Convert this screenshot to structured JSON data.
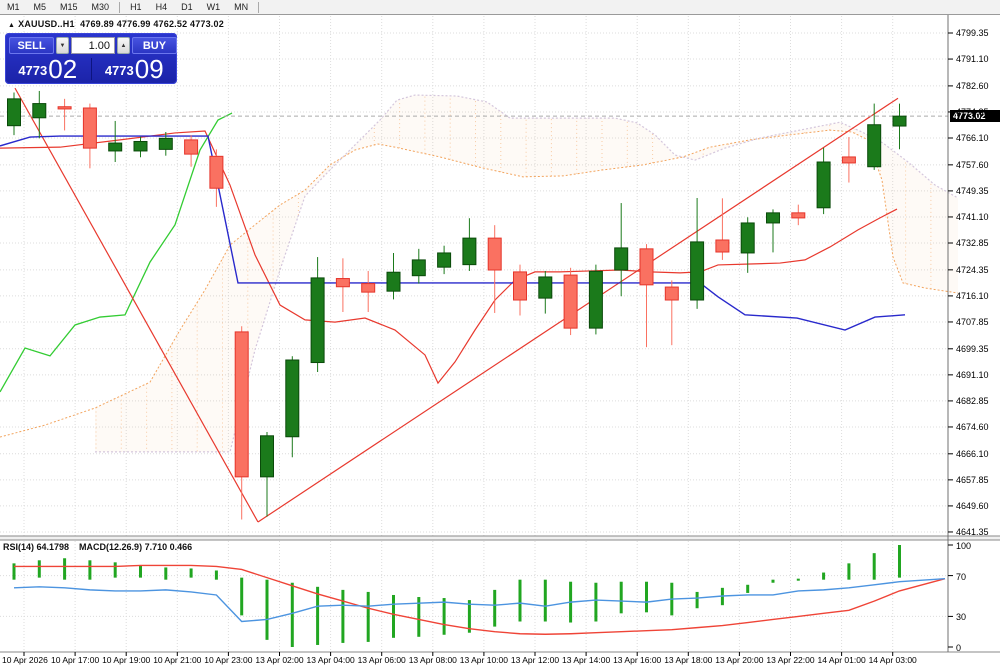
{
  "toolbar": {
    "timeframes": [
      "M1",
      "M5",
      "M15",
      "M30",
      "H1",
      "H4",
      "D1",
      "W1",
      "MN"
    ]
  },
  "chart_header": {
    "collapse_icon": "▲",
    "symbol": "XAUUSD..H1",
    "open": "4769.89",
    "high": "4776.99",
    "low": "4762.52",
    "close": "4773.02"
  },
  "trade_panel": {
    "sell_label": "SELL",
    "buy_label": "BUY",
    "volume": "1.00",
    "spin_down": "▼",
    "spin_up": "▲",
    "bid_prefix": "4773",
    "bid_big": "02",
    "ask_prefix": "4773",
    "ask_big": "09"
  },
  "indicator_labels": {
    "rsi": "RSI(14) 64.1798",
    "macd": "MACD(12.26.9) 7.710 0.466"
  },
  "price_tag": "4773.02",
  "axes": {
    "price_labels": [
      "4799.35",
      "4791.10",
      "4782.60",
      "4774.35",
      "4766.10",
      "4757.60",
      "4749.35",
      "4741.10",
      "4732.85",
      "4724.35",
      "4716.10",
      "4707.85",
      "4699.35",
      "4691.10",
      "4682.85",
      "4674.60",
      "4666.10",
      "4657.85",
      "4649.60",
      "4641.35"
    ],
    "oscillator_labels": [
      "100",
      "70",
      "30",
      "0"
    ],
    "time_labels": [
      "10 Apr 2026",
      "10 Apr 17:00",
      "10 Apr 19:00",
      "10 Apr 21:00",
      "10 Apr 23:00",
      "13 Apr 02:00",
      "13 Apr 04:00",
      "13 Apr 06:00",
      "13 Apr 08:00",
      "13 Apr 10:00",
      "13 Apr 12:00",
      "13 Apr 14:00",
      "13 Apr 16:00",
      "13 Apr 18:00",
      "13 Apr 20:00",
      "13 Apr 22:00",
      "14 Apr 01:00",
      "14 Apr 03:00"
    ]
  },
  "colors": {
    "up_fill": "#1B7A1B",
    "up_stroke": "#0A4A0A",
    "down_fill": "#FA7161",
    "down_stroke": "#E5352B",
    "trend_red": "#E8392E",
    "kijun_blue": "#2929CC",
    "chikou_green": "#33CC33",
    "senkou_a": "#F2A45E",
    "senkou_b": "#D4C6DC",
    "grid": "#DCDCDC",
    "pane_blue": "#4C94E0",
    "pane_red": "#EF4437",
    "hist_green": "#21A621",
    "bid_line": "#AAAAAA"
  },
  "chart_data": {
    "type": "candlestick",
    "symbol": "XAUUSD",
    "timeframe": "H1",
    "price_axis_range": [
      4641.35,
      4799.35
    ],
    "oscillator_range": [
      0,
      100
    ],
    "current_bid": 4773.02,
    "current_ask": 4773.09,
    "candles_ohlc": [
      [
        4770.0,
        4780.5,
        4767.0,
        4778.5
      ],
      [
        4772.5,
        4781.0,
        4766.0,
        4777.0
      ],
      [
        4776.0,
        4778.5,
        4768.5,
        4775.3
      ],
      [
        4775.6,
        4777.0,
        4756.5,
        4762.9
      ],
      [
        4762.0,
        4771.5,
        4758.5,
        4764.5
      ],
      [
        4762.0,
        4766.5,
        4760.0,
        4765.0
      ],
      [
        4762.5,
        4768.0,
        4760.5,
        4766.0
      ],
      [
        4765.5,
        4767.0,
        4757.0,
        4761.0
      ],
      [
        4760.3,
        4762.5,
        4744.3,
        4750.2
      ],
      [
        4704.7,
        4706.5,
        4645.3,
        4658.8
      ],
      [
        4658.8,
        4673.0,
        4646.2,
        4671.8
      ],
      [
        4671.5,
        4697.0,
        4665.0,
        4695.8
      ],
      [
        4695.0,
        4728.4,
        4692.0,
        4721.8
      ],
      [
        4721.6,
        4728.0,
        4711.0,
        4719.0
      ],
      [
        4720.0,
        4724.0,
        4711.0,
        4717.3
      ],
      [
        4717.6,
        4729.7,
        4715.0,
        4723.6
      ],
      [
        4722.5,
        4731.0,
        4720.0,
        4727.5
      ],
      [
        4725.2,
        4732.0,
        4723.0,
        4729.7
      ],
      [
        4726.0,
        4740.7,
        4724.0,
        4734.4
      ],
      [
        4734.4,
        4738.5,
        4710.7,
        4724.3
      ],
      [
        4723.7,
        4726.0,
        4709.9,
        4714.8
      ],
      [
        4715.4,
        4724.0,
        4710.5,
        4722.1
      ],
      [
        4722.7,
        4725.0,
        4703.7,
        4705.9
      ],
      [
        4705.9,
        4726.0,
        4703.9,
        4723.9
      ],
      [
        4724.3,
        4745.5,
        4716.0,
        4731.3
      ],
      [
        4731.0,
        4732.5,
        4699.9,
        4719.6
      ],
      [
        4718.9,
        4721.0,
        4700.5,
        4714.8
      ],
      [
        4714.8,
        4747.1,
        4712.0,
        4733.2
      ],
      [
        4733.8,
        4747.0,
        4727.5,
        4730.0
      ],
      [
        4729.7,
        4741.0,
        4723.4,
        4739.2
      ],
      [
        4739.2,
        4743.5,
        4729.9,
        4742.4
      ],
      [
        4742.4,
        4745.0,
        4738.5,
        4740.8
      ],
      [
        4744.0,
        4763.0,
        4742.0,
        4758.5
      ],
      [
        4760.1,
        4766.4,
        4752.0,
        4758.2
      ],
      [
        4757.0,
        4777.0,
        4756.0,
        4770.3
      ],
      [
        4769.89,
        4776.99,
        4762.52,
        4773.02
      ]
    ],
    "kijun_line": [
      [
        0,
        4763.6
      ],
      [
        30,
        4766.4
      ],
      [
        60,
        4766.7
      ],
      [
        208,
        4766.7
      ],
      [
        238,
        4720.2
      ],
      [
        700,
        4720.2
      ],
      [
        718,
        4715.8
      ],
      [
        745,
        4710.1
      ],
      [
        797,
        4709.1
      ],
      [
        845,
        4705.3
      ],
      [
        875,
        4709.4
      ],
      [
        905,
        4710.1
      ]
    ],
    "tenkan_ma_line": [
      [
        0,
        4762.9
      ],
      [
        60,
        4763.2
      ],
      [
        120,
        4765.5
      ],
      [
        175,
        4767.7
      ],
      [
        205,
        4768.3
      ],
      [
        230,
        4751.2
      ],
      [
        255,
        4729.1
      ],
      [
        280,
        4713.2
      ],
      [
        305,
        4708.5
      ],
      [
        335,
        4707.8
      ],
      [
        365,
        4709.1
      ],
      [
        395,
        4705.3
      ],
      [
        425,
        4697.4
      ],
      [
        438,
        4688.5
      ],
      [
        455,
        4695.2
      ],
      [
        475,
        4705.3
      ],
      [
        495,
        4714.8
      ],
      [
        515,
        4721.1
      ],
      [
        535,
        4723.7
      ],
      [
        560,
        4723.7
      ],
      [
        590,
        4724.0
      ],
      [
        620,
        4724.3
      ],
      [
        650,
        4723.7
      ],
      [
        680,
        4723.4
      ],
      [
        700,
        4723.7
      ],
      [
        718,
        4725.9
      ],
      [
        750,
        4726.2
      ],
      [
        780,
        4726.5
      ],
      [
        805,
        4727.5
      ],
      [
        830,
        4731.6
      ],
      [
        858,
        4737.0
      ],
      [
        880,
        4740.8
      ],
      [
        897,
        4743.6
      ]
    ],
    "chikou_line": [
      [
        0,
        4685.7
      ],
      [
        25,
        4699.6
      ],
      [
        50,
        4697.1
      ],
      [
        75,
        4706.9
      ],
      [
        100,
        4709.4
      ],
      [
        125,
        4710.1
      ],
      [
        150,
        4726.8
      ],
      [
        175,
        4738.6
      ],
      [
        200,
        4762.3
      ],
      [
        218,
        4771.8
      ],
      [
        232,
        4774.0
      ]
    ],
    "senkou_a": [
      [
        0,
        4671.4
      ],
      [
        45,
        4675.2
      ],
      [
        95,
        4680.6
      ],
      [
        150,
        4688.8
      ],
      [
        180,
        4705.3
      ],
      [
        205,
        4718.0
      ],
      [
        230,
        4732.2
      ],
      [
        255,
        4738.6
      ],
      [
        280,
        4744.9
      ],
      [
        305,
        4749.6
      ],
      [
        330,
        4757.6
      ],
      [
        355,
        4762.3
      ],
      [
        378,
        4764.2
      ],
      [
        395,
        4763.2
      ],
      [
        440,
        4760.1
      ],
      [
        483,
        4756.6
      ],
      [
        523,
        4753.8
      ],
      [
        563,
        4754.1
      ],
      [
        603,
        4756.0
      ],
      [
        643,
        4757.6
      ],
      [
        683,
        4760.1
      ],
      [
        710,
        4763.2
      ],
      [
        750,
        4765.5
      ],
      [
        790,
        4767.1
      ],
      [
        830,
        4768.6
      ],
      [
        852,
        4768.0
      ],
      [
        868,
        4765.5
      ],
      [
        882,
        4752.8
      ],
      [
        893,
        4728.4
      ],
      [
        903,
        4720.2
      ],
      [
        925,
        4718.6
      ],
      [
        958,
        4717.0
      ]
    ],
    "senkou_b": [
      [
        95,
        4666.7
      ],
      [
        230,
        4666.7
      ],
      [
        255,
        4699.0
      ],
      [
        280,
        4724.3
      ],
      [
        305,
        4747.7
      ],
      [
        330,
        4756.0
      ],
      [
        355,
        4763.9
      ],
      [
        380,
        4771.8
      ],
      [
        397,
        4778.1
      ],
      [
        415,
        4779.7
      ],
      [
        457,
        4779.4
      ],
      [
        487,
        4777.5
      ],
      [
        510,
        4772.4
      ],
      [
        615,
        4772.4
      ],
      [
        637,
        4770.9
      ],
      [
        655,
        4767.1
      ],
      [
        675,
        4760.7
      ],
      [
        695,
        4759.1
      ],
      [
        725,
        4762.9
      ],
      [
        760,
        4766.1
      ],
      [
        800,
        4768.6
      ],
      [
        840,
        4771.1
      ],
      [
        862,
        4768.0
      ],
      [
        883,
        4764.5
      ],
      [
        908,
        4758.5
      ],
      [
        935,
        4751.2
      ],
      [
        958,
        4747.1
      ]
    ],
    "trendline_down": [
      [
        15,
        4781.9
      ],
      [
        258,
        4644.5
      ]
    ],
    "trendline_up": [
      [
        258,
        4644.5
      ],
      [
        898,
        4778.7
      ]
    ],
    "rsi_line": [
      58,
      59,
      58,
      56,
      55,
      55,
      56,
      54,
      51,
      25,
      27,
      33,
      40,
      41,
      40,
      42,
      43,
      44,
      42,
      41,
      43,
      40,
      44,
      46,
      45,
      44,
      47,
      48,
      50,
      51,
      51,
      55,
      56,
      58,
      61,
      64
    ],
    "rsi_tail": 67,
    "macd_signal_line": [
      79,
      79,
      79,
      79,
      79,
      80,
      80,
      80,
      79,
      76,
      68,
      60,
      52,
      45,
      38,
      32,
      27,
      22,
      18,
      15,
      13,
      12.5,
      13,
      14,
      15,
      16,
      17,
      19,
      21,
      24,
      27,
      30,
      33,
      36,
      45,
      55
    ],
    "macd_tail": 67,
    "macd_histogram": [
      [
        66,
        82
      ],
      [
        68,
        85
      ],
      [
        66,
        87
      ],
      [
        66,
        85
      ],
      [
        68,
        83
      ],
      [
        68,
        80
      ],
      [
        66,
        78
      ],
      [
        68,
        77
      ],
      [
        66,
        75
      ],
      [
        31,
        68
      ],
      [
        7,
        66
      ],
      [
        0,
        63
      ],
      [
        2,
        59
      ],
      [
        4,
        56
      ],
      [
        5,
        54
      ],
      [
        9,
        51
      ],
      [
        10,
        49
      ],
      [
        12,
        48
      ],
      [
        14,
        46
      ],
      [
        20,
        56
      ],
      [
        25,
        66
      ],
      [
        25,
        66
      ],
      [
        24,
        64
      ],
      [
        25,
        63
      ],
      [
        33,
        64
      ],
      [
        34,
        64
      ],
      [
        31,
        63
      ],
      [
        38,
        54
      ],
      [
        41,
        58
      ],
      [
        53,
        61
      ],
      [
        63,
        66
      ],
      [
        65,
        67
      ],
      [
        66,
        73
      ],
      [
        66,
        82
      ],
      [
        66,
        92
      ],
      [
        68,
        100
      ]
    ]
  }
}
